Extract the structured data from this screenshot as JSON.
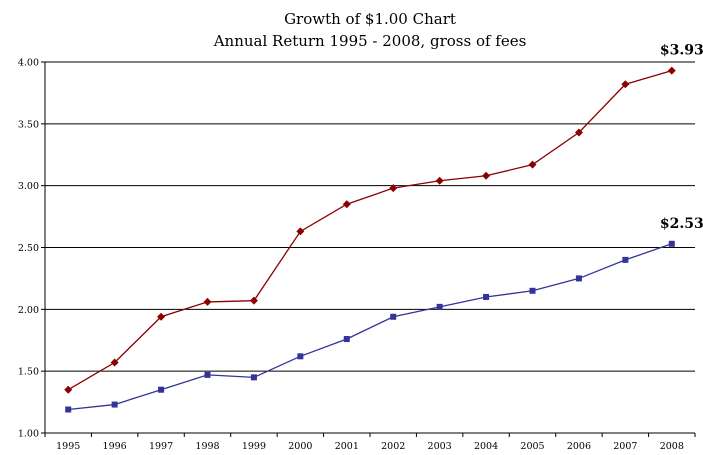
{
  "chart_data": {
    "type": "line",
    "title": "Growth of $1.00 Chart",
    "subtitle": "Annual Return 1995 - 2008, gross of fees",
    "xlabel": "",
    "ylabel": "",
    "categories": [
      "1995",
      "1996",
      "1997",
      "1998",
      "1999",
      "2000",
      "2001",
      "2002",
      "2003",
      "2004",
      "2005",
      "2006",
      "2007",
      "2008"
    ],
    "ylim": [
      1.0,
      4.0
    ],
    "yticks": [
      "1.00",
      "1.50",
      "2.00",
      "2.50",
      "3.00",
      "3.50",
      "4.00"
    ],
    "grid": true,
    "legend": "none",
    "series": [
      {
        "color": "#8b0000",
        "marker": "diamond",
        "values": [
          1.35,
          1.57,
          1.94,
          2.06,
          2.07,
          2.63,
          2.85,
          2.98,
          3.04,
          3.08,
          3.17,
          3.43,
          3.82,
          3.93
        ],
        "end_label": "$3.93"
      },
      {
        "color": "#33339a",
        "marker": "square",
        "values": [
          1.19,
          1.23,
          1.35,
          1.47,
          1.45,
          1.62,
          1.76,
          1.94,
          2.02,
          2.1,
          2.15,
          2.25,
          2.4,
          2.53
        ],
        "end_label": "$2.53"
      }
    ]
  }
}
